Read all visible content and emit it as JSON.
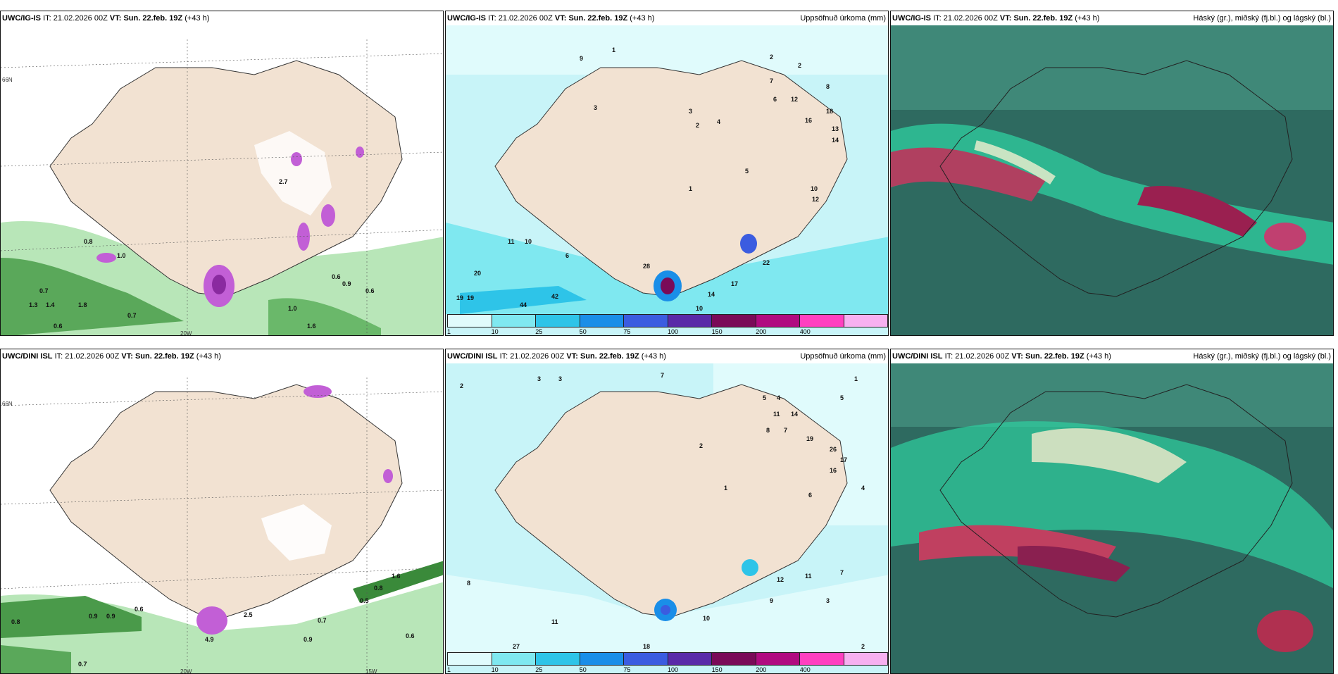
{
  "colors": {
    "land": "#f2e2d2",
    "sea_light": "#c8f4f8",
    "precip_green": "#3a9a4a",
    "snow_purple": "#c25fd6",
    "cloud_dark": "#2e6a60",
    "cloud_red": "#b04060"
  },
  "panels": [
    {
      "model": "UWC/IG-IS",
      "it_label": "IT:",
      "it": "21.02.2026 00Z",
      "vt_label": "VT:",
      "vt": "Sun. 22.feb. 19Z",
      "lead": "(+43 h)",
      "title": ""
    },
    {
      "model": "UWC/IG-IS",
      "it_label": "IT:",
      "it": "21.02.2026 00Z",
      "vt_label": "VT:",
      "vt": "Sun. 22.feb. 19Z",
      "lead": "(+43 h)",
      "title": "Uppsöfnuð úrkoma (mm)"
    },
    {
      "model": "UWC/IG-IS",
      "it_label": "IT:",
      "it": "21.02.2026 00Z",
      "vt_label": "VT:",
      "vt": "Sun. 22.feb. 19Z",
      "lead": "(+43 h)",
      "title": "Háský (gr.), miðský (fj.bl.) og lágský (bl.)"
    },
    {
      "model": "UWC/DINI ISL",
      "it_label": "IT:",
      "it": "21.02.2026 00Z",
      "vt_label": "VT:",
      "vt": "Sun. 22.feb. 19Z",
      "lead": "(+43 h)",
      "title": ""
    },
    {
      "model": "UWC/DINI ISL",
      "it_label": "IT:",
      "it": "21.02.2026 00Z",
      "vt_label": "VT:",
      "vt": "Sun. 22.feb. 19Z",
      "lead": "(+43 h)",
      "title": "Uppsöfnuð úrkoma (mm)"
    },
    {
      "model": "UWC/DINI ISL",
      "it_label": "IT:",
      "it": "21.02.2026 00Z",
      "vt_label": "VT:",
      "vt": "Sun. 22.feb. 19Z",
      "lead": "(+43 h)",
      "title": "Háský (gr.), miðský (fj.bl.) og lágský (bl.)"
    }
  ],
  "axis_labels": {
    "lat": "66N",
    "lon20": "20W",
    "lon15": "15W"
  },
  "legend": {
    "ticks": [
      "1",
      "10",
      "25",
      "50",
      "75",
      "100",
      "150",
      "200",
      "400"
    ],
    "colors": [
      "#e0fbfc",
      "#7fe8f0",
      "#2ec4e8",
      "#1a8ee8",
      "#3b5ce0",
      "#5a2aa8",
      "#7a0a58",
      "#b00a80",
      "#ff40c0",
      "#f7b0f0"
    ]
  },
  "precip_labels_top": [
    "9",
    "1",
    "2",
    "7",
    "6",
    "12",
    "16",
    "13",
    "14",
    "10",
    "3",
    "2",
    "1",
    "11",
    "10",
    "6",
    "20",
    "19",
    "19",
    "44",
    "42",
    "28",
    "17",
    "14",
    "22",
    "10",
    "18",
    "12",
    "4",
    "5",
    "3",
    "2",
    "8"
  ],
  "precip_labels_bottom": [
    "2",
    "3",
    "3",
    "7",
    "1",
    "5",
    "4",
    "5",
    "14",
    "19",
    "26",
    "17",
    "16",
    "11",
    "8",
    "7",
    "6",
    "2",
    "1",
    "4",
    "12",
    "11",
    "9",
    "7",
    "10",
    "11",
    "27",
    "18",
    "8",
    "3",
    "2"
  ],
  "snow_labels_top": [
    "0.7",
    "0.6",
    "1.0",
    "0.9",
    "0.6",
    "0.8",
    "1.3",
    "1.4",
    "1.8",
    "0.7",
    "1.0",
    "1.6",
    "2.7",
    "0.6"
  ],
  "snow_labels_bottom": [
    "0.8",
    "0.9",
    "0.9",
    "0.6",
    "0.7",
    "0.5",
    "0.8",
    "1.6",
    "0.9",
    "4.9",
    "2.5",
    "0.7",
    "0.6"
  ]
}
